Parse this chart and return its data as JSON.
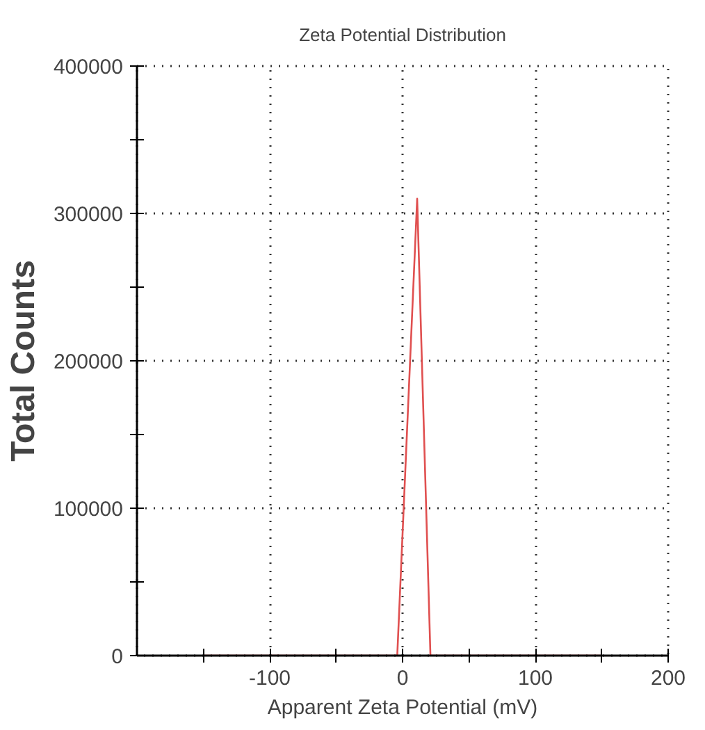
{
  "chart_data": {
    "type": "line",
    "title": "Zeta Potential Distribution",
    "xlabel": "Apparent Zeta Potential (mV)",
    "ylabel": "Total Counts",
    "x": [
      -150,
      -4,
      11,
      21,
      150
    ],
    "series": [
      {
        "color": "#e05050",
        "values": [
          0,
          0,
          310000,
          0,
          0
        ]
      }
    ],
    "xlim": [
      -200,
      200
    ],
    "xticks": [
      {
        "value": -150,
        "label": null
      },
      -100,
      {
        "value": -50,
        "label": null
      },
      0,
      {
        "value": 50,
        "label": null
      },
      100,
      {
        "value": 150,
        "label": null
      },
      200
    ],
    "ylim": [
      0,
      400000
    ],
    "yticks": [
      0,
      {
        "value": 50000,
        "label": null
      },
      100000,
      {
        "value": 150000,
        "label": null
      },
      200000,
      {
        "value": 250000,
        "label": null
      },
      300000,
      {
        "value": 350000,
        "label": null
      },
      400000
    ],
    "grid": true,
    "marker": "none",
    "line_style": "solid"
  }
}
